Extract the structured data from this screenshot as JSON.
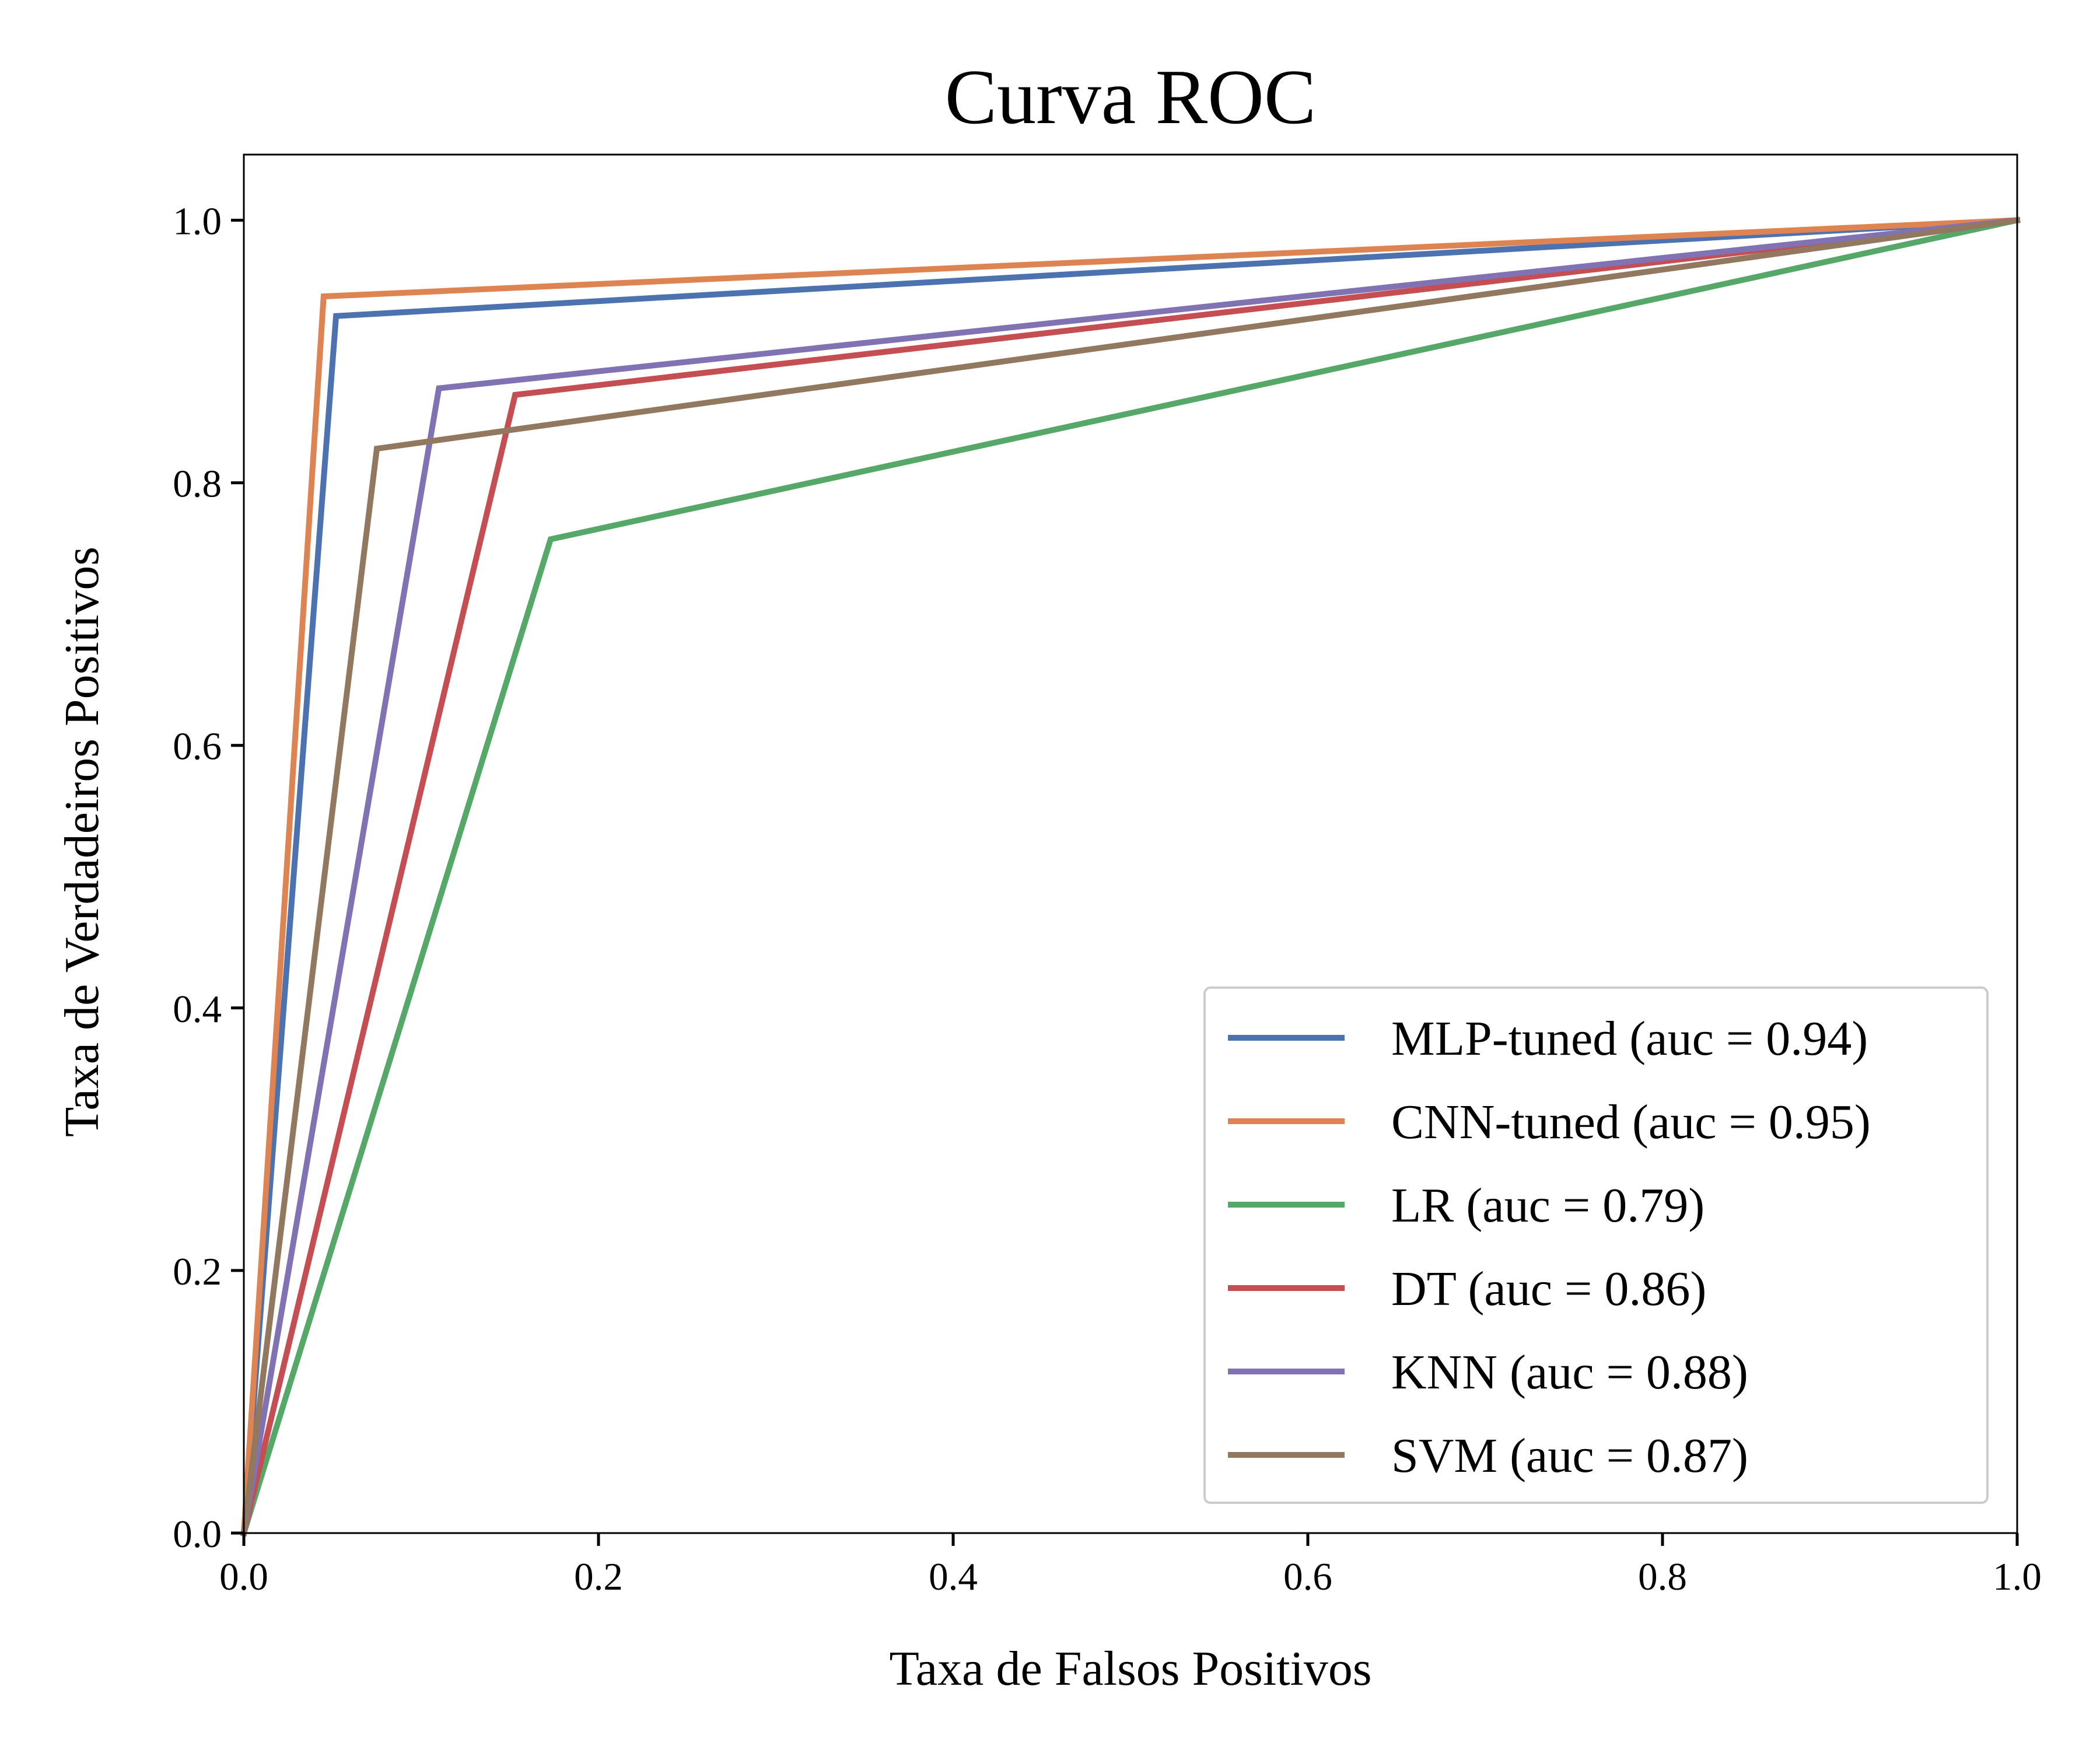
{
  "chart_data": {
    "type": "line",
    "title": "Curva ROC",
    "xlabel": "Taxa de Falsos Positivos",
    "ylabel": "Taxa de Verdadeiros Positivos",
    "xlim": [
      0.0,
      1.0
    ],
    "ylim": [
      0.0,
      1.05
    ],
    "xticks": [
      "0.0",
      "0.2",
      "0.4",
      "0.6",
      "0.8",
      "1.0"
    ],
    "yticks": [
      "0.0",
      "0.2",
      "0.4",
      "0.6",
      "0.8",
      "1.0"
    ],
    "grid": false,
    "legend_position": "lower-right",
    "series": [
      {
        "name": "MLP-tuned (auc = 0.94)",
        "color": "#4c72b0",
        "x": [
          0.0,
          0.052,
          1.0
        ],
        "y": [
          0.0,
          0.927,
          1.0
        ]
      },
      {
        "name": "CNN-tuned (auc = 0.95)",
        "color": "#dd8452",
        "x": [
          0.0,
          0.045,
          1.0
        ],
        "y": [
          0.0,
          0.942,
          1.0
        ]
      },
      {
        "name": "LR (auc = 0.79)",
        "color": "#55a868",
        "x": [
          0.0,
          0.173,
          1.0
        ],
        "y": [
          0.0,
          0.757,
          1.0
        ]
      },
      {
        "name": "DT (auc = 0.86)",
        "color": "#c44e52",
        "x": [
          0.0,
          0.153,
          1.0
        ],
        "y": [
          0.0,
          0.867,
          1.0
        ]
      },
      {
        "name": "KNN (auc = 0.88)",
        "color": "#8172b3",
        "x": [
          0.0,
          0.11,
          1.0
        ],
        "y": [
          0.0,
          0.872,
          1.0
        ]
      },
      {
        "name": "SVM (auc = 0.87)",
        "color": "#937860",
        "x": [
          0.0,
          0.075,
          1.0
        ],
        "y": [
          0.0,
          0.826,
          1.0
        ]
      }
    ]
  }
}
